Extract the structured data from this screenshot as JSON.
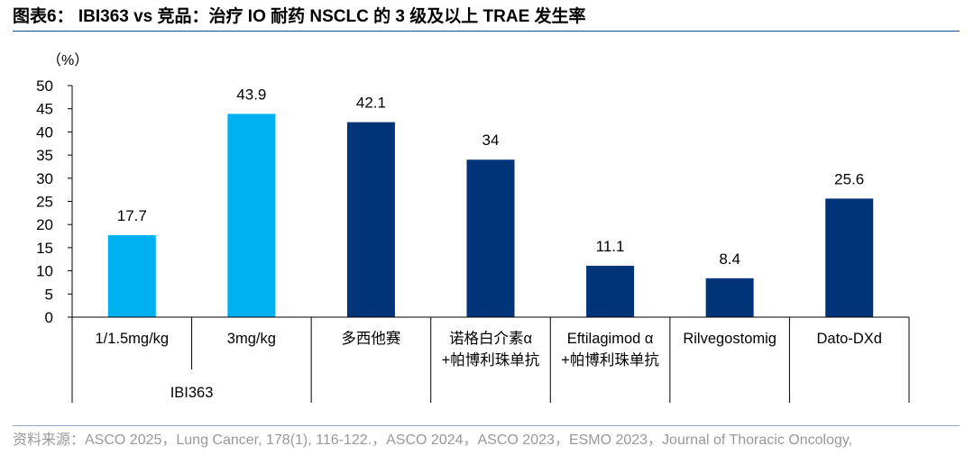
{
  "header": {
    "title": "图表6：   IBI363 vs  竞品：治疗 IO 耐药 NSCLC 的 3 级及以上 TRAE 发生率"
  },
  "footer": {
    "source": "资料来源：ASCO 2025，Lung Cancer, 178(1), 116-122.，ASCO 2024，ASCO 2023，ESMO 2023，Journal of Thoracic Oncology,"
  },
  "chart_data": {
    "type": "bar",
    "unit_label": "（%）",
    "ylim": [
      0,
      50
    ],
    "yticks": [
      0,
      5,
      10,
      15,
      20,
      25,
      30,
      35,
      40,
      45,
      50
    ],
    "categories": [
      [
        "1/1.5mg/kg"
      ],
      [
        "3mg/kg"
      ],
      [
        "多西他赛"
      ],
      [
        "诺格白介素α",
        "+帕博利珠单抗"
      ],
      [
        "Eftilagimod α",
        "+帕博利珠单抗"
      ],
      [
        "Rilvegostomig"
      ],
      [
        "Dato-DXd"
      ]
    ],
    "values": [
      17.7,
      43.9,
      42.1,
      34,
      11.1,
      8.4,
      25.6
    ],
    "value_labels": [
      "17.7",
      "43.9",
      "42.1",
      "34",
      "11.1",
      "8.4",
      "25.6"
    ],
    "bar_colors": [
      "#00b0f0",
      "#00b0f0",
      "#003478",
      "#003478",
      "#003478",
      "#003478",
      "#003478"
    ],
    "group_label": "IBI363",
    "group_span": [
      0,
      1
    ],
    "grid": false,
    "legend": "none"
  }
}
